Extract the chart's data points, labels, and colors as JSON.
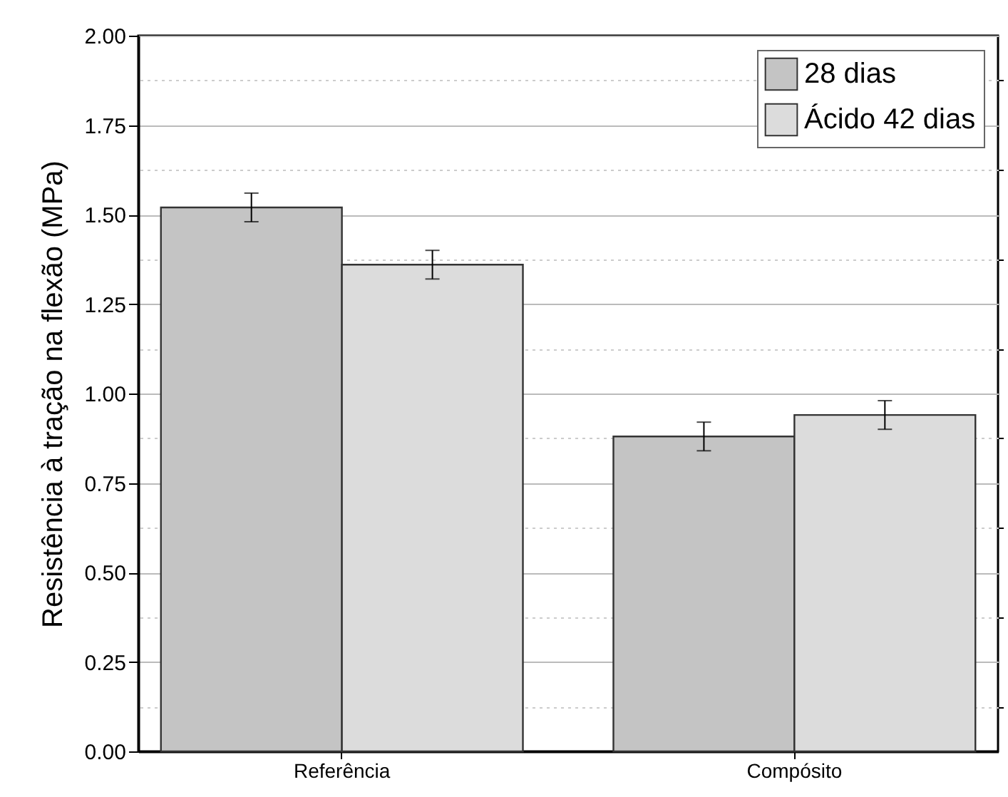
{
  "chart_data": {
    "type": "bar",
    "ylabel": "Resistência à tração na flexão (MPa)",
    "categories": [
      "Referência",
      "Compósito"
    ],
    "series": [
      {
        "name": "28 dias",
        "color": "#c4c4c4",
        "values": [
          1.52,
          0.88
        ],
        "errors": [
          0.04,
          0.04
        ]
      },
      {
        "name": "Ácido 42 dias",
        "color": "#dcdcdc",
        "values": [
          1.36,
          0.94
        ],
        "errors": [
          0.04,
          0.04
        ]
      }
    ],
    "ylim": [
      0,
      2
    ],
    "yticks": [
      {
        "value": 0,
        "label": "0.00"
      },
      {
        "value": 0.125,
        "label": null
      },
      0.25,
      {
        "value": 0.375,
        "label": null
      },
      {
        "value": 0.5,
        "label": "0.50"
      },
      {
        "value": 0.625,
        "label": null
      },
      0.75,
      {
        "value": 0.875,
        "label": null
      },
      {
        "value": 1,
        "label": "1.00"
      },
      {
        "value": 1.125,
        "label": null
      },
      1.25,
      {
        "value": 1.375,
        "label": null
      },
      {
        "value": 1.5,
        "label": "1.50"
      },
      {
        "value": 1.625,
        "label": null
      },
      1.75,
      {
        "value": 1.875,
        "label": null
      },
      {
        "value": 2,
        "label": "2.00"
      }
    ],
    "grid": "y",
    "legend": "top right"
  }
}
